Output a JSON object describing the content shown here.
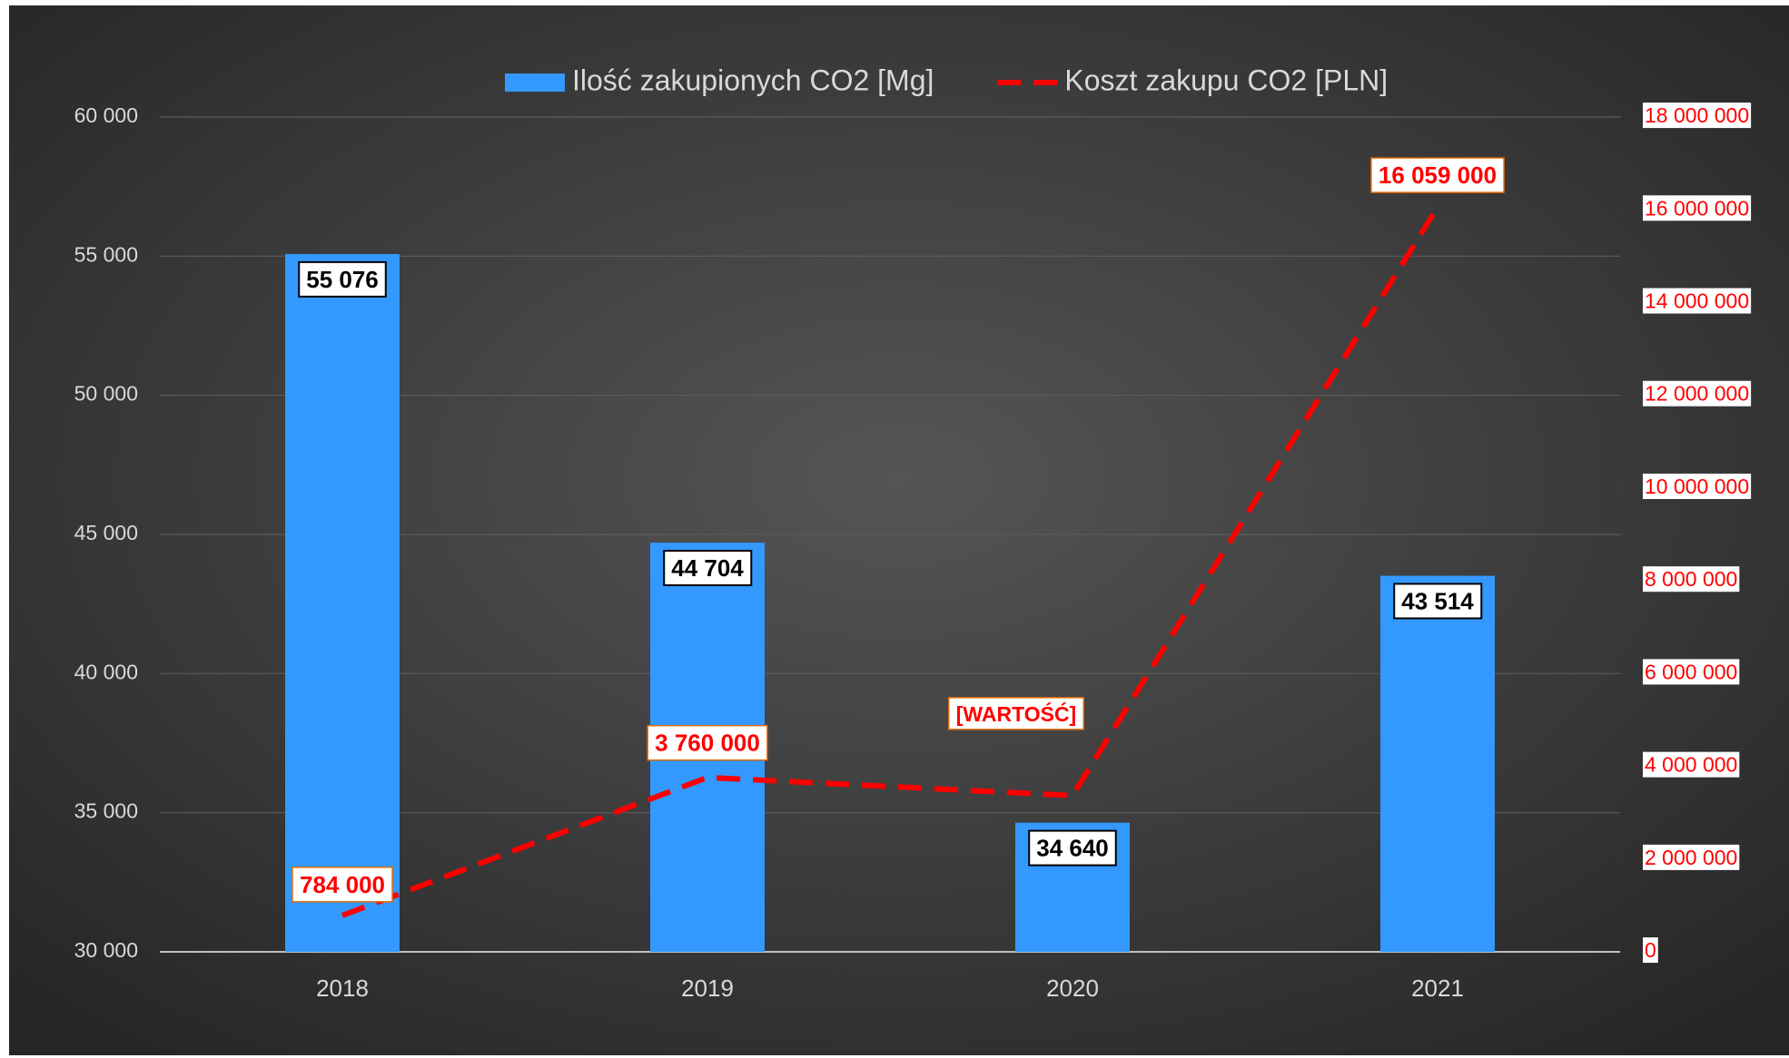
{
  "chart_data": {
    "type": "bar_line",
    "categories": [
      "2018",
      "2019",
      "2020",
      "2021"
    ],
    "series": [
      {
        "name": "Ilość zakupionych CO2 [Mg]",
        "type": "bar",
        "color": "#3399ff",
        "values": [
          55076,
          44704,
          34640,
          43514
        ],
        "value_labels": [
          "55 076",
          "44 704",
          "34 640",
          "43 514"
        ]
      },
      {
        "name": "Koszt zakupu CO2 [PLN]",
        "type": "line",
        "axis": "y2",
        "color": "#ff0000",
        "values": [
          784000,
          3760000,
          3370000,
          16059000
        ],
        "value_labels": [
          "784 000",
          "3 760 000",
          "[WARTOŚĆ]",
          "16 059 000"
        ]
      }
    ],
    "ylim": [
      30000,
      60000
    ],
    "yticks": [
      {
        "value": 30000,
        "label": "30 000"
      },
      {
        "value": 35000,
        "label": "35 000"
      },
      {
        "value": 40000,
        "label": "40 000"
      },
      {
        "value": 45000,
        "label": "45 000"
      },
      {
        "value": 50000,
        "label": "50 000"
      },
      {
        "value": 55000,
        "label": "55 000"
      },
      {
        "value": 60000,
        "label": "60 000"
      }
    ],
    "y2lim": [
      0,
      18000000
    ],
    "y2ticks": [
      0,
      {
        "value": 2000000,
        "label": "2 000 000"
      },
      {
        "value": 4000000,
        "label": "4 000 000"
      },
      {
        "value": 6000000,
        "label": "6 000 000"
      },
      {
        "value": 8000000,
        "label": "8 000 000"
      },
      {
        "value": 10000000,
        "label": "10 000 000"
      },
      {
        "value": 12000000,
        "label": "12 000 000"
      },
      {
        "value": 14000000,
        "label": "14 000 000"
      },
      {
        "value": 16000000,
        "label": "16 000 000"
      },
      {
        "value": 18000000,
        "label": "18 000 000"
      }
    ],
    "grid": true,
    "legend": "top"
  }
}
